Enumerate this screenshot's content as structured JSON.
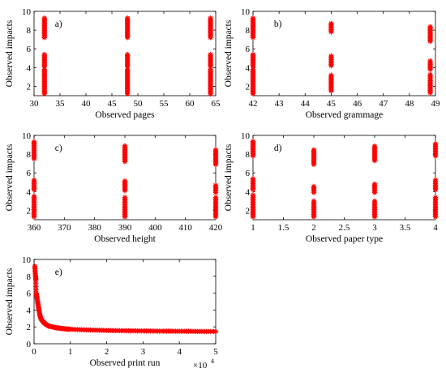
{
  "chart_data": [
    {
      "type": "scatter",
      "panel_label": "a)",
      "xlabel": "Observed pages",
      "ylabel": "Observed impacts",
      "xlim": [
        30,
        65
      ],
      "ylim": [
        1,
        10
      ],
      "xticks": [
        30,
        35,
        40,
        45,
        50,
        55,
        60,
        65
      ],
      "yticks": [
        2,
        4,
        6,
        8,
        10
      ],
      "marker": "*",
      "color": "#ff0000",
      "series": [
        {
          "x": 32,
          "y_ranges": [
            [
              1.2,
              3.8
            ],
            [
              4.1,
              5.4
            ],
            [
              7.2,
              9.4
            ]
          ]
        },
        {
          "x": 48,
          "y_ranges": [
            [
              1.2,
              3.8
            ],
            [
              4.1,
              5.4
            ],
            [
              7.2,
              9.4
            ]
          ]
        },
        {
          "x": 64,
          "y_ranges": [
            [
              1.2,
              3.8
            ],
            [
              4.1,
              5.4
            ],
            [
              7.2,
              9.4
            ]
          ]
        }
      ]
    },
    {
      "type": "scatter",
      "panel_label": "b)",
      "xlabel": "Observed grammage",
      "ylabel": "Observed impacts",
      "xlim": [
        42,
        49
      ],
      "ylim": [
        1,
        10
      ],
      "xticks": [
        42,
        43,
        44,
        45,
        46,
        47,
        48,
        49
      ],
      "yticks": [
        2,
        4,
        6,
        8,
        10
      ],
      "marker": "*",
      "color": "#ff0000",
      "series": [
        {
          "x": 42,
          "y_ranges": [
            [
              1.2,
              3.8
            ],
            [
              4.1,
              5.4
            ],
            [
              7.2,
              9.4
            ]
          ]
        },
        {
          "x": 45,
          "y_ranges": [
            [
              1.5,
              3.2
            ],
            [
              4.2,
              5.3
            ],
            [
              7.8,
              8.8
            ]
          ]
        },
        {
          "x": 48.8,
          "y_ranges": [
            [
              1.3,
              3.3
            ],
            [
              3.8,
              4.8
            ],
            [
              6.8,
              8.4
            ]
          ]
        }
      ]
    },
    {
      "type": "scatter",
      "panel_label": "c)",
      "xlabel": "Observed height",
      "ylabel": "Observed impacts",
      "xlim": [
        360,
        420
      ],
      "ylim": [
        1,
        10
      ],
      "xticks": [
        360,
        370,
        380,
        390,
        400,
        410,
        420
      ],
      "yticks": [
        2,
        4,
        6,
        8,
        10
      ],
      "marker": "*",
      "color": "#ff0000",
      "series": [
        {
          "x": 360,
          "y_ranges": [
            [
              1.3,
              3.6
            ],
            [
              4.2,
              5.3
            ],
            [
              7.5,
              9.4
            ]
          ]
        },
        {
          "x": 390,
          "y_ranges": [
            [
              1.3,
              3.4
            ],
            [
              4.1,
              5.2
            ],
            [
              7.2,
              8.9
            ]
          ]
        },
        {
          "x": 420,
          "y_ranges": [
            [
              1.3,
              3.4
            ],
            [
              3.9,
              4.8
            ],
            [
              6.9,
              8.5
            ]
          ]
        }
      ]
    },
    {
      "type": "scatter",
      "panel_label": "d)",
      "xlabel": "Observed paper type",
      "ylabel": "Observed impacts",
      "xlim": [
        1,
        4
      ],
      "ylim": [
        1,
        10
      ],
      "xticks": [
        1,
        1.5,
        2,
        2.5,
        3,
        3.5,
        4
      ],
      "yticks": [
        2,
        4,
        6,
        8,
        10
      ],
      "marker": "*",
      "color": "#ff0000",
      "series": [
        {
          "x": 1,
          "y_ranges": [
            [
              1.3,
              3.7
            ],
            [
              4.2,
              5.4
            ],
            [
              7.8,
              9.4
            ]
          ]
        },
        {
          "x": 2,
          "y_ranges": [
            [
              1.3,
              3.0
            ],
            [
              3.9,
              4.6
            ],
            [
              6.9,
              8.5
            ]
          ]
        },
        {
          "x": 3,
          "y_ranges": [
            [
              1.3,
              3.0
            ],
            [
              3.9,
              4.9
            ],
            [
              7.3,
              8.9
            ]
          ]
        },
        {
          "x": 4,
          "y_ranges": [
            [
              1.3,
              3.4
            ],
            [
              4.2,
              5.3
            ],
            [
              7.8,
              9.2
            ]
          ]
        }
      ]
    },
    {
      "type": "scatter",
      "panel_label": "e)",
      "xlabel": "Observed print run",
      "ylabel": "Observed impacts",
      "xlim": [
        0,
        5
      ],
      "ylim": [
        0,
        10
      ],
      "xticks": [
        0,
        1,
        2,
        3,
        4,
        5
      ],
      "yticks": [
        0,
        2,
        4,
        6,
        8,
        10
      ],
      "x_multiplier": "×10",
      "x_multiplier_exp": "4",
      "marker": "*",
      "color": "#ff0000",
      "series": [
        {
          "name": "",
          "x": [
            0.02,
            0.03,
            0.04,
            0.05,
            0.06,
            0.08,
            0.1,
            0.12,
            0.14,
            0.16,
            0.18,
            0.2,
            0.25,
            0.3,
            0.35,
            0.4,
            0.5,
            0.6,
            0.7,
            0.8,
            0.9,
            1.0,
            1.2,
            1.4,
            1.6,
            1.8,
            2.0,
            2.2,
            2.4,
            2.6,
            2.8,
            3.0,
            3.2,
            3.4,
            3.6,
            3.8,
            4.0,
            4.2,
            4.4,
            4.6,
            4.8,
            5.0
          ],
          "y": [
            9.2,
            8.6,
            8.0,
            7.6,
            6.0,
            5.5,
            4.9,
            4.4,
            3.9,
            3.4,
            3.1,
            2.9,
            2.6,
            2.4,
            2.25,
            2.1,
            2.0,
            1.9,
            1.85,
            1.8,
            1.75,
            1.72,
            1.68,
            1.65,
            1.62,
            1.6,
            1.58,
            1.56,
            1.55,
            1.54,
            1.53,
            1.52,
            1.51,
            1.5,
            1.5,
            1.49,
            1.48,
            1.48,
            1.47,
            1.46,
            1.45,
            1.45
          ]
        }
      ]
    }
  ]
}
